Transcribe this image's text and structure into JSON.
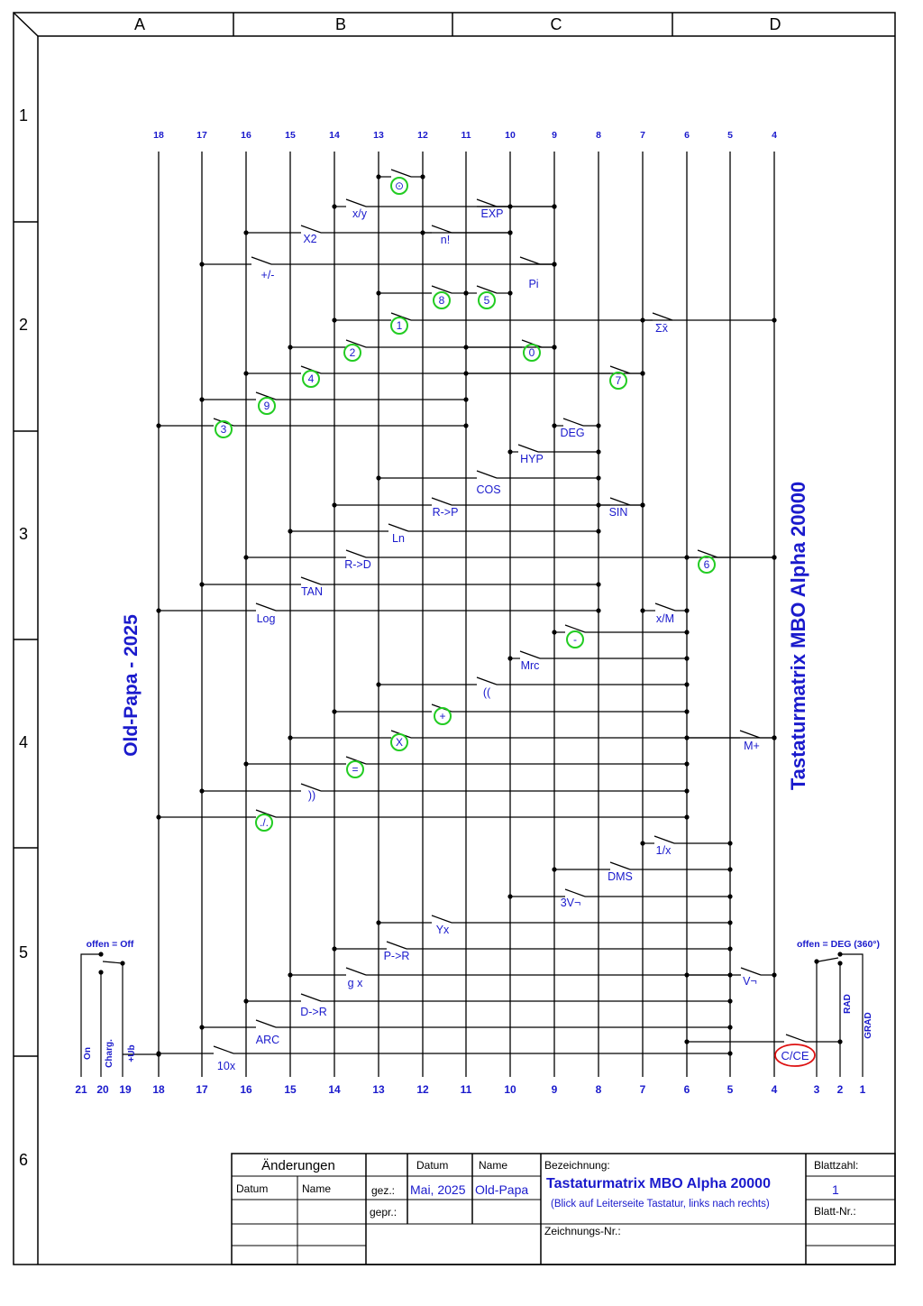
{
  "title_side": "Tastaturmatrix MBO Alpha 20000",
  "author_side": "Old-Papa - 2025",
  "column_letters": [
    "A",
    "B",
    "C",
    "D"
  ],
  "row_numbers": [
    "1",
    "2",
    "3",
    "4",
    "5",
    "6"
  ],
  "top_line_numbers": [
    "18",
    "17",
    "16",
    "15",
    "14",
    "13",
    "12",
    "11",
    "10",
    "9",
    "8",
    "7",
    "6",
    "5",
    "4"
  ],
  "bottom_line_numbers": [
    "21",
    "20",
    "19",
    "18",
    "17",
    "16",
    "15",
    "14",
    "13",
    "12",
    "11",
    "10",
    "9",
    "8",
    "7",
    "6",
    "5",
    "4",
    "3",
    "2",
    "1"
  ],
  "switches": {
    "power_header": "offen = Off",
    "power_labels": [
      "On",
      "Charg.",
      "+Ub"
    ],
    "angle_header": "offen = DEG (360°)",
    "angle_labels": [
      "RAD",
      "GRAD"
    ]
  },
  "keys": [
    {
      "label": "x/y"
    },
    {
      "label": "EXP"
    },
    {
      "label": "X2"
    },
    {
      "label": "n!"
    },
    {
      "label": "+/-"
    },
    {
      "label": "Pi"
    },
    {
      "label": "Σx̄"
    },
    {
      "label": "DEG"
    },
    {
      "label": "HYP"
    },
    {
      "label": "COS"
    },
    {
      "label": "R->P"
    },
    {
      "label": "SIN"
    },
    {
      "label": "Ln"
    },
    {
      "label": "R->D"
    },
    {
      "label": "TAN"
    },
    {
      "label": "Log"
    },
    {
      "label": "x/M"
    },
    {
      "label": "Mrc"
    },
    {
      "label": "(("
    },
    {
      "label": "M+"
    },
    {
      "label": "))"
    },
    {
      "label": "1/x"
    },
    {
      "label": "DMS"
    },
    {
      "label": "3V¬"
    },
    {
      "label": "Yx"
    },
    {
      "label": "P->R"
    },
    {
      "label": "g x"
    },
    {
      "label": "V¬"
    },
    {
      "label": "D->R"
    },
    {
      "label": "ARC"
    },
    {
      "label": "10x"
    }
  ],
  "circled_keys": [
    {
      "label": "⊙"
    },
    {
      "label": "8"
    },
    {
      "label": "5"
    },
    {
      "label": "1"
    },
    {
      "label": "2"
    },
    {
      "label": "0"
    },
    {
      "label": "4"
    },
    {
      "label": "7"
    },
    {
      "label": "9"
    },
    {
      "label": "3"
    },
    {
      "label": "6"
    },
    {
      "label": "-"
    },
    {
      "label": "+"
    },
    {
      "label": "X"
    },
    {
      "label": "="
    },
    {
      "label": "./."
    }
  ],
  "clear_key": "C/CE",
  "title_block": {
    "changes_header": "Änderungen",
    "col_date": "Datum",
    "col_name": "Name",
    "drawn_label": "gez.:",
    "checked_label": "gepr.:",
    "drawn_date": "Mai, 2025",
    "drawn_name": "Old-Papa",
    "designation_label": "Bezeichnung:",
    "designation": "Tastaturmatrix MBO Alpha 20000",
    "designation_note": "(Blick auf Leiterseite Tastatur, links nach rechts)",
    "sheet_count_label": "Blattzahl:",
    "sheet_count": "1",
    "sheet_no_label": "Blatt-Nr.:",
    "drawing_no_label": "Zeichnungs-Nr.:"
  },
  "colors": {
    "lines": "#000000",
    "labels": "#1a1acc",
    "circles": "#22cc22",
    "clear": "#dd1111"
  }
}
